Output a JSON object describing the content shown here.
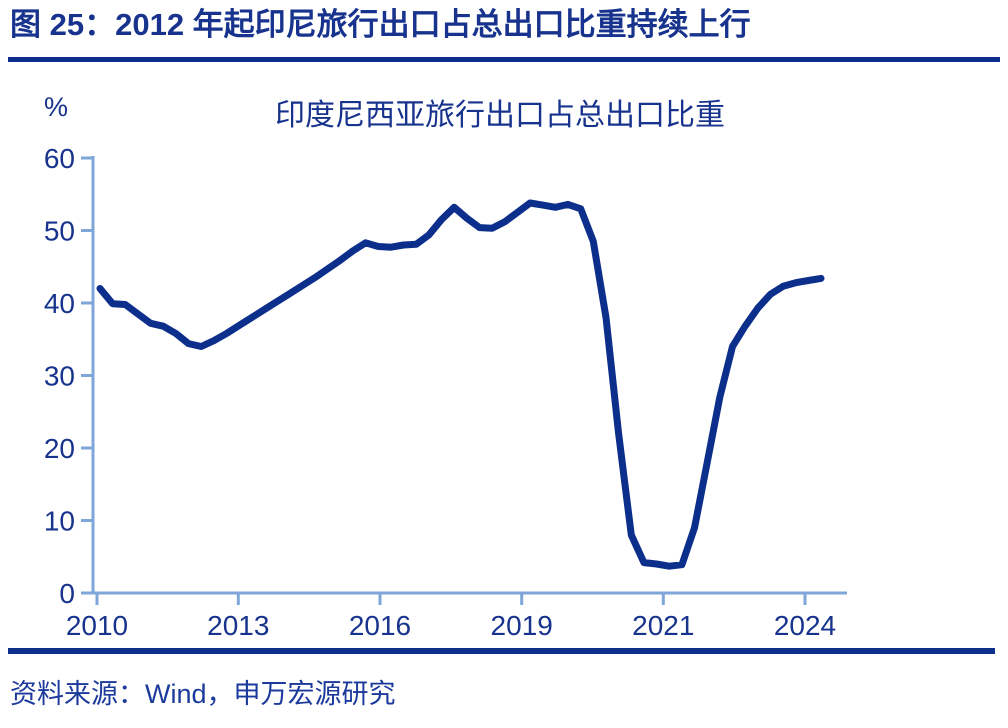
{
  "figure": {
    "title": "图 25：2012 年起印尼旅行出口占总出口比重持续上行",
    "source": "资料来源：Wind，申万宏源研究"
  },
  "chart": {
    "title": "印度尼西亚旅行出口占总出口比重",
    "unit_label": "%"
  },
  "chart_data": {
    "type": "line",
    "title": "印度尼西亚旅行出口占总出口比重",
    "xlabel": "",
    "ylabel": "%",
    "ylim": [
      0,
      60
    ],
    "yticks": [
      0,
      10,
      20,
      30,
      40,
      50,
      60
    ],
    "xtick_labels": [
      "2010",
      "2013",
      "2016",
      "2019",
      "2021",
      "2024"
    ],
    "grid": false,
    "legend": "none",
    "series": [
      {
        "name": "印度尼西亚旅行出口占总出口比重",
        "x": [
          "2010Q1",
          "2010Q2",
          "2010Q3",
          "2010Q4",
          "2011Q1",
          "2011Q2",
          "2011Q3",
          "2011Q4",
          "2012Q1",
          "2012Q2",
          "2012Q3",
          "2012Q4",
          "2013Q1",
          "2013Q2",
          "2013Q3",
          "2013Q4",
          "2014Q1",
          "2014Q2",
          "2014Q3",
          "2014Q4",
          "2015Q1",
          "2015Q2",
          "2015Q3",
          "2015Q4",
          "2016Q1",
          "2016Q2",
          "2016Q3",
          "2016Q4",
          "2017Q1",
          "2017Q2",
          "2017Q3",
          "2017Q4",
          "2018Q1",
          "2018Q2",
          "2018Q3",
          "2018Q4",
          "2019Q1",
          "2019Q2",
          "2019Q3",
          "2019Q4",
          "2020Q1",
          "2020Q2",
          "2020Q3",
          "2020Q4",
          "2021Q1",
          "2021Q2",
          "2021Q3",
          "2021Q4",
          "2022Q1",
          "2022Q2",
          "2022Q3",
          "2022Q4",
          "2023Q1",
          "2023Q2",
          "2023Q3",
          "2023Q4",
          "2024Q1",
          "2024Q2"
        ],
        "values": [
          42.0,
          39.9,
          39.8,
          38.5,
          37.2,
          36.8,
          35.8,
          34.4,
          34.0,
          34.8,
          35.8,
          36.9,
          38.0,
          39.1,
          40.2,
          41.3,
          42.4,
          43.5,
          44.7,
          45.9,
          47.2,
          48.3,
          47.8,
          47.7,
          48.0,
          48.1,
          49.4,
          51.5,
          53.2,
          51.7,
          50.4,
          50.3,
          51.2,
          52.5,
          53.8,
          53.5,
          53.2,
          53.6,
          53.0,
          48.5,
          38.0,
          22.0,
          8.0,
          4.2,
          4.0,
          3.7,
          3.9,
          9.0,
          18.0,
          27.0,
          34.0,
          36.8,
          39.3,
          41.2,
          42.3,
          42.8,
          43.1,
          43.4
        ]
      }
    ]
  },
  "colors": {
    "line": "#0D2F8C",
    "axis": "#7EA6D9",
    "text": "#17338D",
    "rule": "#0D2F8C",
    "footer_text": "#1B3A9B"
  }
}
